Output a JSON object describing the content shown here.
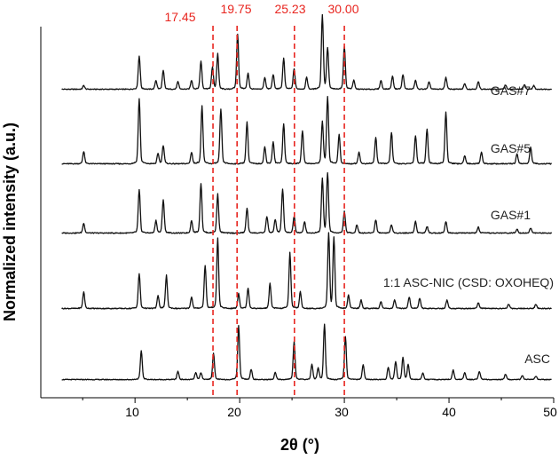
{
  "chart_data": {
    "type": "line",
    "title": "",
    "xlabel": "2θ (°)",
    "ylabel": "Normalized intensity (a.u.)",
    "xlim": [
      1,
      50
    ],
    "xticks": [
      10,
      20,
      30,
      40,
      50
    ],
    "grid": false,
    "legend": "none",
    "reference_lines": [
      17.45,
      19.75,
      25.23,
      30.0
    ],
    "reference_labels": [
      "17.45",
      "19.75",
      "25.23",
      "30.00"
    ],
    "reference_color": "#e8251f",
    "series": [
      {
        "name": "GAS#7",
        "baseline": 0,
        "peaks": [
          [
            5.1,
            0.05
          ],
          [
            10.4,
            0.45
          ],
          [
            12.0,
            0.12
          ],
          [
            12.7,
            0.25
          ],
          [
            14.1,
            0.1
          ],
          [
            15.4,
            0.12
          ],
          [
            16.3,
            0.38
          ],
          [
            17.4,
            0.3
          ],
          [
            17.9,
            0.48
          ],
          [
            19.8,
            0.75
          ],
          [
            20.8,
            0.22
          ],
          [
            22.4,
            0.16
          ],
          [
            23.2,
            0.2
          ],
          [
            24.2,
            0.42
          ],
          [
            25.2,
            0.28
          ],
          [
            26.4,
            0.16
          ],
          [
            27.9,
            1.0
          ],
          [
            28.4,
            0.55
          ],
          [
            30.0,
            0.58
          ],
          [
            30.9,
            0.12
          ],
          [
            33.5,
            0.12
          ],
          [
            34.6,
            0.18
          ],
          [
            35.6,
            0.2
          ],
          [
            36.8,
            0.12
          ],
          [
            38.1,
            0.1
          ],
          [
            39.7,
            0.16
          ],
          [
            41.5,
            0.08
          ],
          [
            42.8,
            0.1
          ],
          [
            45.4,
            0.06
          ],
          [
            47.2,
            0.06
          ],
          [
            48.1,
            0.05
          ]
        ]
      },
      {
        "name": "GAS#5",
        "baseline": 1,
        "peaks": [
          [
            5.1,
            0.15
          ],
          [
            10.4,
            0.78
          ],
          [
            12.2,
            0.12
          ],
          [
            12.7,
            0.22
          ],
          [
            15.4,
            0.14
          ],
          [
            16.4,
            0.7
          ],
          [
            18.2,
            0.66
          ],
          [
            20.7,
            0.5
          ],
          [
            22.4,
            0.2
          ],
          [
            23.2,
            0.26
          ],
          [
            24.2,
            0.48
          ],
          [
            26.0,
            0.4
          ],
          [
            27.9,
            0.5
          ],
          [
            28.4,
            0.8
          ],
          [
            29.5,
            0.35
          ],
          [
            31.4,
            0.14
          ],
          [
            33.0,
            0.32
          ],
          [
            34.5,
            0.38
          ],
          [
            36.8,
            0.34
          ],
          [
            37.9,
            0.42
          ],
          [
            39.7,
            0.62
          ],
          [
            41.5,
            0.1
          ],
          [
            43.1,
            0.14
          ],
          [
            46.5,
            0.12
          ],
          [
            47.8,
            0.2
          ]
        ]
      },
      {
        "name": "GAS#1",
        "baseline": 2,
        "peaks": [
          [
            5.1,
            0.12
          ],
          [
            10.4,
            0.52
          ],
          [
            12.0,
            0.15
          ],
          [
            12.7,
            0.4
          ],
          [
            15.4,
            0.15
          ],
          [
            16.3,
            0.6
          ],
          [
            17.9,
            0.47
          ],
          [
            20.7,
            0.3
          ],
          [
            22.6,
            0.2
          ],
          [
            23.4,
            0.16
          ],
          [
            24.1,
            0.53
          ],
          [
            25.2,
            0.2
          ],
          [
            26.2,
            0.14
          ],
          [
            27.9,
            0.65
          ],
          [
            28.4,
            0.72
          ],
          [
            30.0,
            0.26
          ],
          [
            31.2,
            0.1
          ],
          [
            33.0,
            0.16
          ],
          [
            34.5,
            0.1
          ],
          [
            36.8,
            0.14
          ],
          [
            37.9,
            0.08
          ],
          [
            39.7,
            0.14
          ],
          [
            42.8,
            0.07
          ],
          [
            46.5,
            0.05
          ],
          [
            47.8,
            0.06
          ]
        ]
      },
      {
        "name": "1:1 ASC-NIC (CSD: OXOHEQ)",
        "baseline": 3,
        "peaks": [
          [
            5.1,
            0.2
          ],
          [
            10.4,
            0.42
          ],
          [
            12.2,
            0.15
          ],
          [
            13.0,
            0.4
          ],
          [
            15.4,
            0.14
          ],
          [
            16.7,
            0.52
          ],
          [
            17.9,
            0.85
          ],
          [
            19.9,
            0.18
          ],
          [
            20.8,
            0.25
          ],
          [
            22.9,
            0.3
          ],
          [
            24.8,
            0.68
          ],
          [
            25.8,
            0.2
          ],
          [
            28.5,
            0.9
          ],
          [
            29.0,
            0.85
          ],
          [
            30.4,
            0.16
          ],
          [
            31.6,
            0.1
          ],
          [
            33.5,
            0.08
          ],
          [
            34.8,
            0.1
          ],
          [
            36.2,
            0.14
          ],
          [
            37.2,
            0.12
          ],
          [
            39.8,
            0.1
          ],
          [
            42.8,
            0.07
          ],
          [
            45.7,
            0.05
          ],
          [
            48.3,
            0.05
          ]
        ]
      },
      {
        "name": "ASC",
        "baseline": 4,
        "peaks": [
          [
            10.6,
            0.42
          ],
          [
            14.1,
            0.12
          ],
          [
            15.8,
            0.1
          ],
          [
            16.3,
            0.1
          ],
          [
            17.5,
            0.38
          ],
          [
            19.9,
            0.78
          ],
          [
            21.1,
            0.15
          ],
          [
            23.4,
            0.1
          ],
          [
            25.2,
            0.55
          ],
          [
            26.9,
            0.22
          ],
          [
            27.5,
            0.16
          ],
          [
            28.1,
            0.8
          ],
          [
            30.1,
            0.62
          ],
          [
            31.8,
            0.22
          ],
          [
            34.2,
            0.18
          ],
          [
            34.9,
            0.26
          ],
          [
            35.6,
            0.32
          ],
          [
            36.1,
            0.22
          ],
          [
            37.5,
            0.1
          ],
          [
            40.4,
            0.14
          ],
          [
            41.5,
            0.1
          ],
          [
            42.9,
            0.12
          ],
          [
            45.4,
            0.08
          ],
          [
            47.0,
            0.06
          ],
          [
            48.3,
            0.05
          ]
        ]
      }
    ]
  },
  "labels": {
    "ylabel": "Normalized intensity (a.u.)",
    "xlabel": "2θ (°)",
    "xticks": [
      "10",
      "20",
      "30",
      "40",
      "50"
    ],
    "series": [
      "GAS#7",
      "GAS#5",
      "GAS#1",
      "1:1 ASC-NIC (CSD: OXOHEQ)",
      "ASC"
    ],
    "refs": [
      "17.45",
      "19.75",
      "25.23",
      "30.00"
    ]
  }
}
